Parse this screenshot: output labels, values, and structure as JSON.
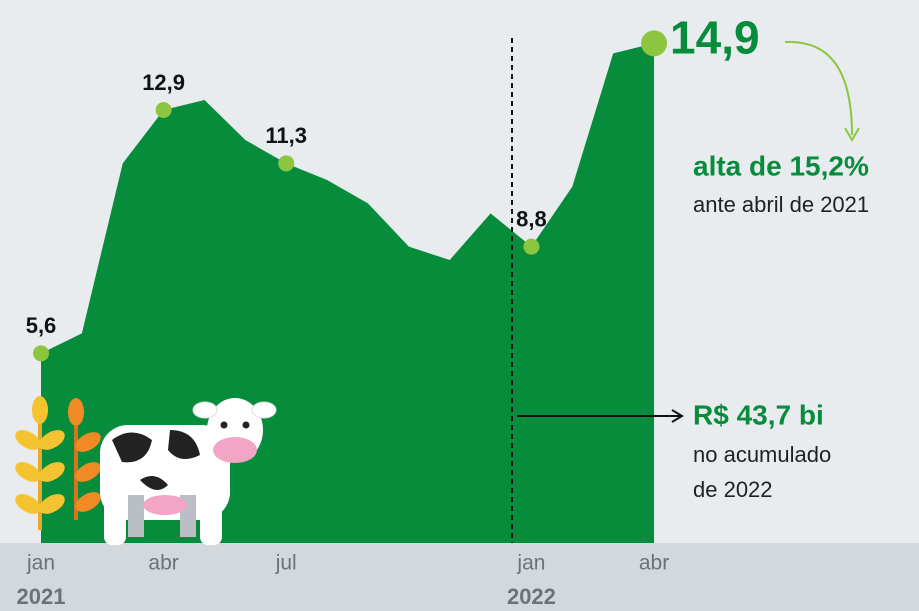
{
  "chart_data": {
    "type": "area",
    "categories": [
      "jan",
      null,
      null,
      "abr",
      null,
      null,
      "jul",
      null,
      null,
      null,
      null,
      null,
      "jan",
      null,
      null,
      "abr"
    ],
    "years": [
      "2021",
      null,
      null,
      null,
      null,
      null,
      null,
      null,
      null,
      null,
      null,
      null,
      "2022",
      null,
      null,
      null
    ],
    "values": [
      5.6,
      6.2,
      11.3,
      12.9,
      13.2,
      12.0,
      11.3,
      10.8,
      10.1,
      8.8,
      8.4,
      9.8,
      8.8,
      10.6,
      14.6,
      14.9
    ],
    "value_labels": [
      "5,6",
      null,
      null,
      "12,9",
      null,
      null,
      "11,3",
      null,
      null,
      null,
      null,
      null,
      "8,8",
      null,
      null,
      "14,9"
    ],
    "ylim": [
      0,
      16.2
    ],
    "color": "#078c3b",
    "marker_color": "#8cc63f",
    "annotations": [
      "alta de 15,2%",
      "ante abril de 2021",
      "R$ 43,7 bi",
      "no acumulado",
      "de 2022"
    ]
  }
}
